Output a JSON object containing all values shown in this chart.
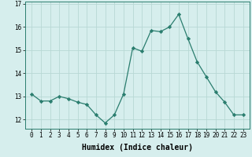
{
  "xlabel": "Humidex (Indice chaleur)",
  "ylabel": "",
  "x": [
    0,
    1,
    2,
    3,
    4,
    5,
    6,
    7,
    8,
    9,
    10,
    11,
    12,
    13,
    14,
    15,
    16,
    17,
    18,
    19,
    20,
    21,
    22,
    23
  ],
  "y": [
    13.1,
    12.8,
    12.8,
    13.0,
    12.9,
    12.75,
    12.65,
    12.2,
    11.85,
    12.2,
    13.1,
    15.1,
    14.95,
    15.85,
    15.8,
    16.0,
    16.55,
    15.5,
    14.5,
    13.85,
    13.2,
    12.75,
    12.2,
    12.2
  ],
  "line_color": "#2a7d6e",
  "marker": "D",
  "marker_size": 2.2,
  "bg_color": "#d6eeed",
  "grid_color": "#b8d8d4",
  "ylim": [
    11.6,
    17.1
  ],
  "yticks": [
    12,
    13,
    14,
    15,
    16,
    17
  ],
  "xlabel_fontsize": 7,
  "tick_fontsize": 5.5,
  "line_width": 0.9
}
